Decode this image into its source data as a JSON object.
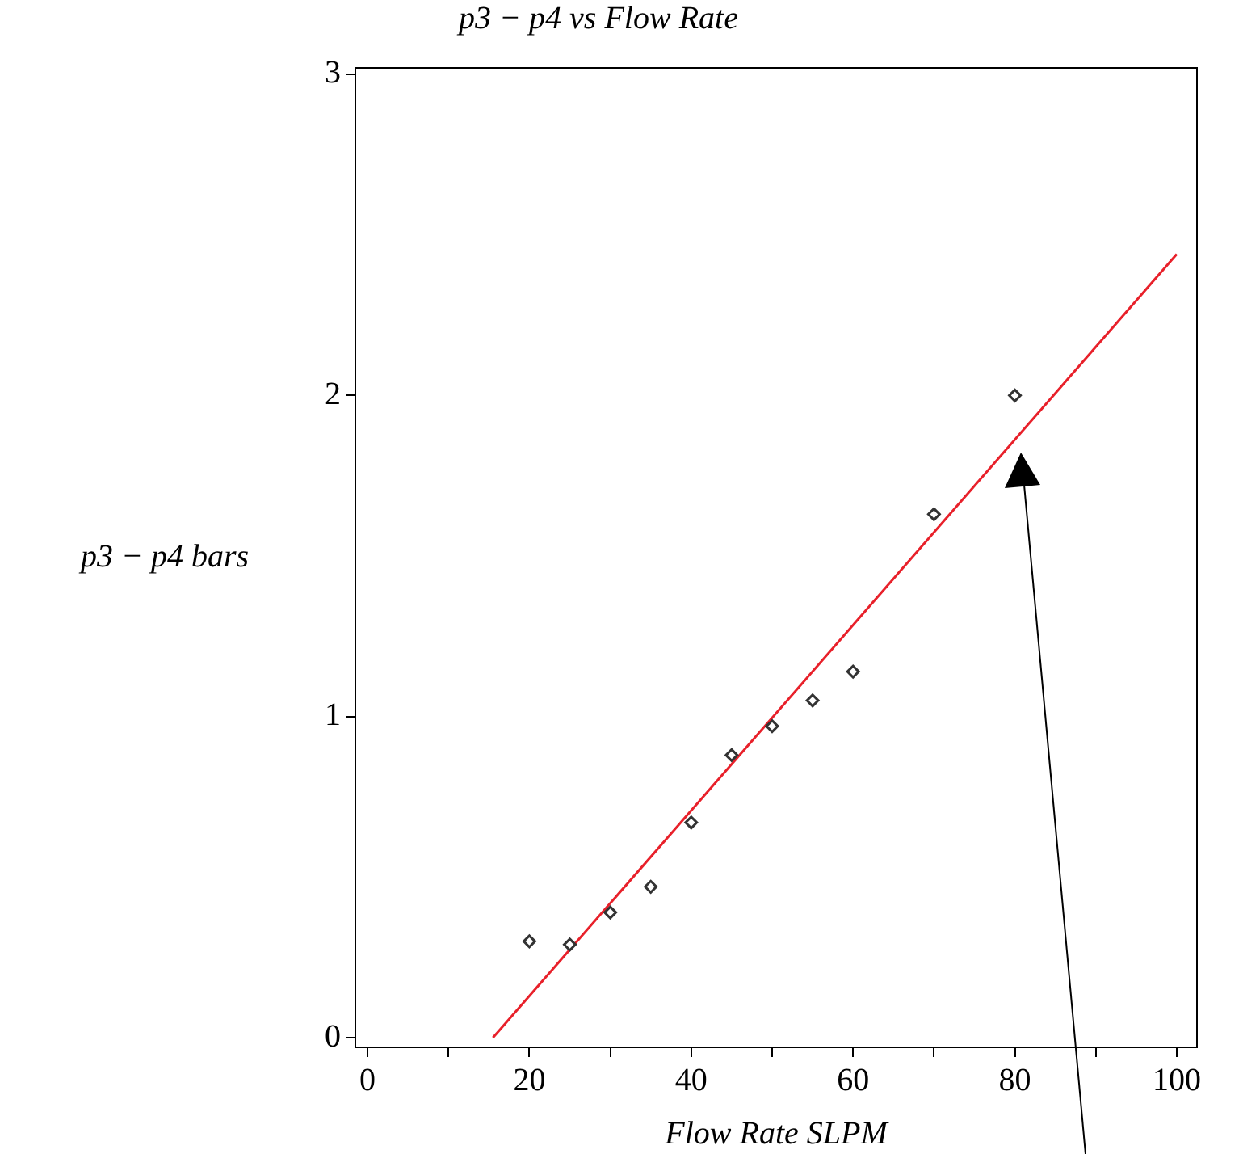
{
  "chart_data": {
    "type": "scatter",
    "title": "p3 − p4 vs Flow Rate",
    "xlabel": "Flow Rate SLPM",
    "ylabel": "p3 − p4 bars",
    "x": [
      20,
      25,
      30,
      35,
      40,
      45,
      50,
      55,
      60,
      70,
      80
    ],
    "series": [
      {
        "type": "scatter",
        "color": "#333333",
        "marker": "diamond",
        "values": [
          0.3,
          0.29,
          0.39,
          0.47,
          0.67,
          0.88,
          0.97,
          1.05,
          1.14,
          1.63,
          2.0
        ]
      },
      {
        "type": "line",
        "color": "#e8202a",
        "x": [
          15.5,
          100
        ],
        "values": [
          0,
          2.44
        ],
        "marker": "none",
        "line_style": "solid"
      }
    ],
    "xlim": [
      -1.5,
      102.5
    ],
    "ylim": [
      -0.03,
      3.02
    ],
    "xticks": [
      0,
      {
        "value": 10,
        "label": null
      },
      20,
      {
        "value": 30,
        "label": null
      },
      40,
      {
        "value": 50,
        "label": null
      },
      60,
      {
        "value": 70,
        "label": null
      },
      80,
      {
        "value": 90,
        "label": null
      },
      100
    ],
    "yticks": [
      0,
      1,
      2,
      3
    ],
    "grid": false,
    "legend": false
  }
}
